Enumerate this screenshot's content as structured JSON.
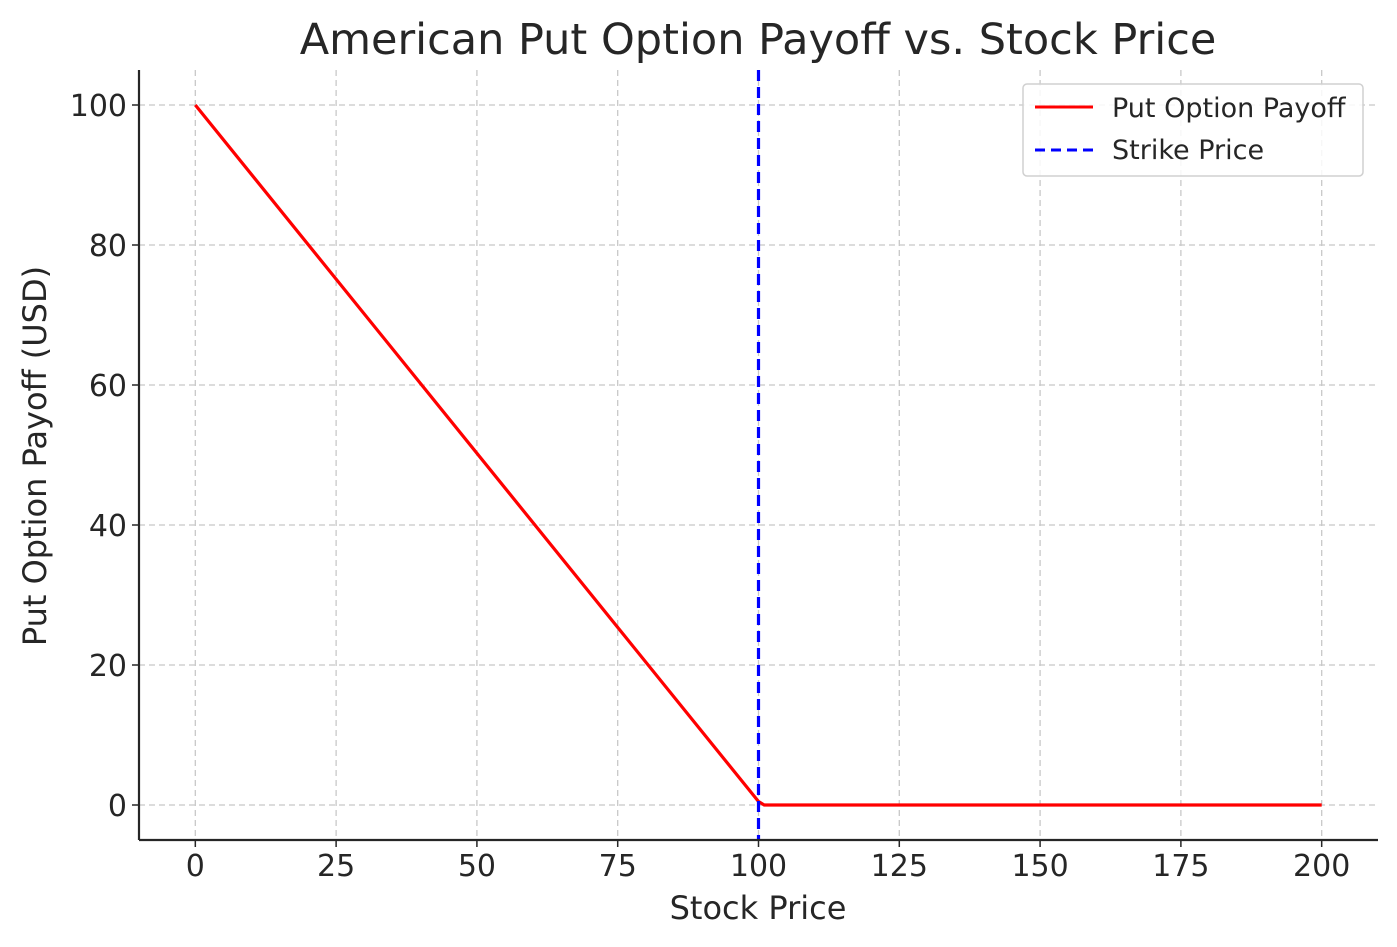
{
  "chart_data": {
    "type": "line",
    "title": "American Put Option Payoff vs. Stock Price",
    "xlabel": "Stock Price",
    "ylabel": "Put Option Payoff (USD)",
    "xlim": [
      -10,
      210
    ],
    "ylim": [
      -5,
      105
    ],
    "xticks": [
      0,
      25,
      50,
      75,
      100,
      125,
      150,
      175,
      200
    ],
    "yticks": [
      0,
      20,
      40,
      60,
      80,
      100
    ],
    "grid": true,
    "legend_position": "top-right",
    "series": [
      {
        "name": "Put Option Payoff",
        "color": "#ff0000",
        "style": "solid",
        "x": [
          0,
          100,
          101,
          200
        ],
        "y": [
          100,
          0.5,
          0,
          0
        ]
      },
      {
        "name": "Strike Price",
        "color": "#0000ff",
        "style": "dashed",
        "vline": 100
      }
    ]
  }
}
